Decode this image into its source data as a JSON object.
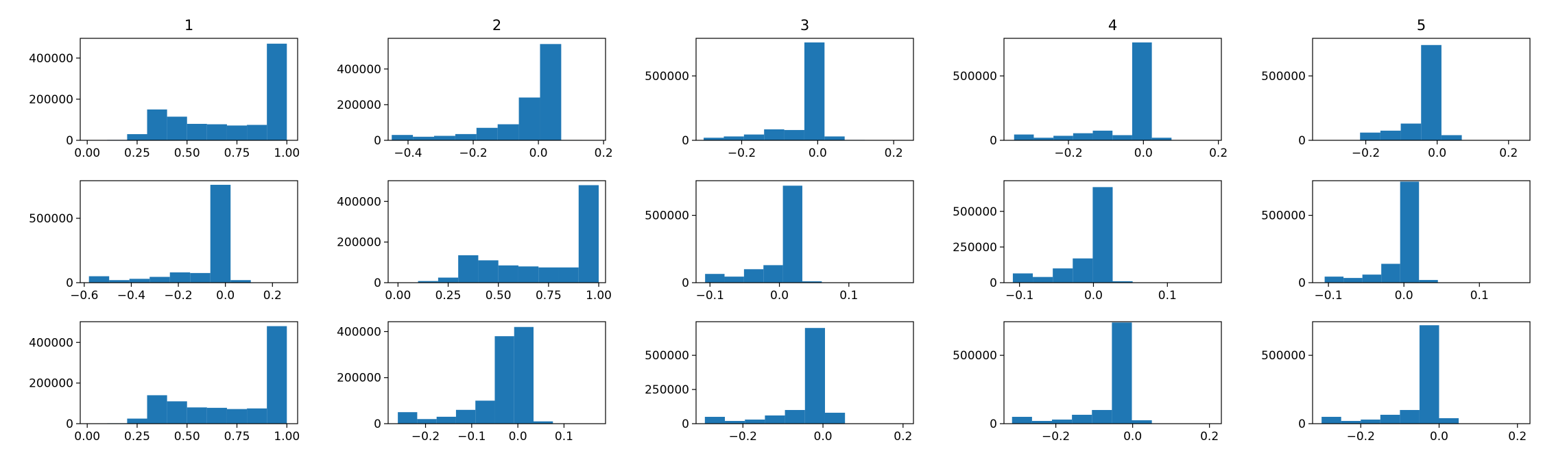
{
  "chart_data": [
    {
      "type": "histogram",
      "title": "1",
      "bins": [
        0,
        0.1,
        0.2,
        0.3,
        0.4,
        0.5,
        0.6,
        0.7,
        0.8,
        0.9,
        1.0
      ],
      "counts": [
        500,
        2000,
        30000,
        150000,
        115000,
        80000,
        78000,
        72000,
        75000,
        470000
      ],
      "color": "#1f77b4",
      "xlim": [
        -0.035,
        1.054
      ],
      "xticks": [
        {
          "value": 0,
          "label": "0.00"
        },
        {
          "value": 0.25,
          "label": "0.25"
        },
        {
          "value": 0.5,
          "label": "0.50"
        },
        {
          "value": 0.75,
          "label": "0.75"
        },
        {
          "value": 1,
          "label": "1.00"
        }
      ],
      "ylim": [
        0,
        496000
      ],
      "yticks": [
        0,
        200000,
        400000
      ]
    },
    {
      "type": "histogram",
      "title": "2",
      "bins": [
        -0.45,
        -0.385,
        -0.32,
        -0.255,
        -0.19,
        -0.125,
        -0.06,
        0.005,
        0.07,
        0.135,
        0.2
      ],
      "counts": [
        30000,
        20000,
        25000,
        35000,
        70000,
        90000,
        240000,
        540000,
        2000,
        500
      ],
      "color": "#1f77b4",
      "xlim": [
        -0.461,
        0.206
      ],
      "xticks": [
        {
          "value": -0.4,
          "label": "−0.4"
        },
        {
          "value": -0.2,
          "label": "−0.2"
        },
        {
          "value": 0,
          "label": "0.0"
        },
        0.2
      ],
      "ylim": [
        0,
        572000
      ],
      "yticks": [
        0,
        200000,
        400000
      ]
    },
    {
      "type": "histogram",
      "title": "3",
      "bins": [
        -0.3,
        -0.247,
        -0.194,
        -0.141,
        -0.088,
        -0.035,
        0.018,
        0.071,
        0.124,
        0.177,
        0.23
      ],
      "counts": [
        20000,
        30000,
        45000,
        85000,
        80000,
        760000,
        30000,
        3000,
        1000,
        500
      ],
      "color": "#1f77b4",
      "xlim": [
        -0.32,
        0.252
      ],
      "xticks": [
        {
          "value": -0.2,
          "label": "−0.2"
        },
        {
          "value": 0,
          "label": "0.0"
        },
        0.2
      ],
      "ylim": [
        0,
        792000
      ],
      "yticks": [
        0,
        500000
      ]
    },
    {
      "type": "histogram",
      "title": "4",
      "bins": [
        -0.345,
        -0.2925,
        -0.24,
        -0.1875,
        -0.135,
        -0.0825,
        -0.03,
        0.0225,
        0.075,
        0.1275,
        0.18
      ],
      "counts": [
        45000,
        20000,
        35000,
        55000,
        75000,
        40000,
        760000,
        20000,
        2000,
        500
      ],
      "color": "#1f77b4",
      "xlim": [
        -0.372,
        0.208
      ],
      "xticks": [
        {
          "value": -0.2,
          "label": "−0.2"
        },
        {
          "value": 0,
          "label": "0.0"
        },
        0.2
      ],
      "ylim": [
        0,
        792000
      ],
      "yticks": [
        0,
        500000
      ]
    },
    {
      "type": "histogram",
      "title": "5",
      "bins": [
        -0.33,
        -0.273,
        -0.216,
        -0.159,
        -0.102,
        -0.045,
        0.012,
        0.069,
        0.126,
        0.183,
        0.24
      ],
      "counts": [
        300,
        200,
        60000,
        75000,
        130000,
        740000,
        40000,
        2000,
        500,
        200
      ],
      "color": "#1f77b4",
      "xlim": [
        -0.349,
        0.26
      ],
      "xticks": [
        {
          "value": -0.2,
          "label": "−0.2"
        },
        {
          "value": 0,
          "label": "0.0"
        },
        0.2
      ],
      "ylim": [
        0,
        792000
      ],
      "yticks": [
        0,
        500000
      ]
    },
    {
      "type": "histogram",
      "bins": [
        -0.58,
        -0.494,
        -0.408,
        -0.322,
        -0.236,
        -0.15,
        -0.064,
        0.022,
        0.108,
        0.194,
        0.28
      ],
      "counts": [
        50000,
        20000,
        30000,
        45000,
        80000,
        75000,
        760000,
        20000,
        1000,
        500
      ],
      "color": "#1f77b4",
      "xlim": [
        -0.617,
        0.307
      ],
      "xticks": [
        {
          "value": -0.6,
          "label": "−0.6"
        },
        {
          "value": -0.4,
          "label": "−0.4"
        },
        {
          "value": -0.2,
          "label": "−0.2"
        },
        {
          "value": 0,
          "label": "0.0"
        },
        0.2
      ],
      "ylim": [
        0,
        792000
      ],
      "yticks": [
        0,
        500000
      ]
    },
    {
      "type": "histogram",
      "bins": [
        0,
        0.1,
        0.2,
        0.3,
        0.4,
        0.5,
        0.6,
        0.7,
        0.8,
        0.9,
        1.0
      ],
      "counts": [
        500,
        8000,
        25000,
        135000,
        110000,
        85000,
        80000,
        75000,
        75000,
        480000
      ],
      "color": "#1f77b4",
      "xlim": [
        -0.049,
        1.034
      ],
      "xticks": [
        {
          "value": 0,
          "label": "0.00"
        },
        {
          "value": 0.25,
          "label": "0.25"
        },
        {
          "value": 0.5,
          "label": "0.50"
        },
        {
          "value": 0.75,
          "label": "0.75"
        },
        {
          "value": 1,
          "label": "1.00"
        }
      ],
      "ylim": [
        0,
        502000
      ],
      "yticks": [
        0,
        200000,
        400000
      ]
    },
    {
      "type": "histogram",
      "bins": [
        -0.107,
        -0.079,
        -0.051,
        -0.023,
        0.005,
        0.033,
        0.061,
        0.089,
        0.117,
        0.145,
        0.173
      ],
      "counts": [
        65000,
        45000,
        100000,
        130000,
        720000,
        10000,
        2000,
        500,
        200,
        100
      ],
      "color": "#1f77b4",
      "xlim": [
        -0.12,
        0.193
      ],
      "xticks": [
        {
          "value": -0.1,
          "label": "−0.1"
        },
        {
          "value": 0,
          "label": "0.0"
        },
        0.1
      ],
      "ylim": [
        0,
        757000
      ],
      "yticks": [
        0,
        500000
      ]
    },
    {
      "type": "histogram",
      "bins": [
        -0.109,
        -0.082,
        -0.055,
        -0.028,
        -0.001,
        0.026,
        0.053,
        0.08,
        0.107,
        0.134,
        0.161
      ],
      "counts": [
        65000,
        40000,
        100000,
        170000,
        670000,
        10000,
        2000,
        500,
        200,
        100
      ],
      "color": "#1f77b4",
      "xlim": [
        -0.121,
        0.173
      ],
      "xticks": [
        {
          "value": -0.1,
          "label": "−0.1"
        },
        {
          "value": 0,
          "label": "0.0"
        },
        0.1
      ],
      "ylim": [
        0,
        715000
      ],
      "yticks": [
        0,
        250000,
        500000
      ]
    },
    {
      "type": "histogram",
      "bins": [
        -0.105,
        -0.08,
        -0.055,
        -0.03,
        -0.005,
        0.02,
        0.045,
        0.07,
        0.095,
        0.12,
        0.145
      ],
      "counts": [
        45000,
        35000,
        60000,
        140000,
        750000,
        20000,
        2000,
        500,
        200,
        100
      ],
      "color": "#1f77b4",
      "xlim": [
        -0.121,
        0.167
      ],
      "xticks": [
        {
          "value": -0.1,
          "label": "−0.1"
        },
        {
          "value": 0,
          "label": "0.0"
        },
        0.1
      ],
      "ylim": [
        0,
        757000
      ],
      "yticks": [
        0,
        500000
      ]
    },
    {
      "type": "histogram",
      "bins": [
        0,
        0.1,
        0.2,
        0.3,
        0.4,
        0.5,
        0.6,
        0.7,
        0.8,
        0.9,
        1.0
      ],
      "counts": [
        500,
        2000,
        25000,
        140000,
        110000,
        80000,
        78000,
        72000,
        75000,
        480000
      ],
      "color": "#1f77b4",
      "xlim": [
        -0.035,
        1.054
      ],
      "xticks": [
        {
          "value": 0,
          "label": "0.00"
        },
        {
          "value": 0.25,
          "label": "0.25"
        },
        {
          "value": 0.5,
          "label": "0.50"
        },
        {
          "value": 0.75,
          "label": "0.75"
        },
        {
          "value": 1,
          "label": "1.00"
        }
      ],
      "ylim": [
        0,
        502000
      ],
      "yticks": [
        0,
        200000,
        400000
      ]
    },
    {
      "type": "histogram",
      "bins": [
        -0.26,
        -0.218,
        -0.176,
        -0.134,
        -0.092,
        -0.05,
        -0.008,
        0.034,
        0.076,
        0.118,
        0.16
      ],
      "counts": [
        50000,
        20000,
        30000,
        60000,
        100000,
        380000,
        420000,
        10000,
        1000,
        200
      ],
      "color": "#1f77b4",
      "xlim": [
        -0.281,
        0.19
      ],
      "xticks": [
        {
          "value": -0.2,
          "label": "−0.2"
        },
        {
          "value": -0.1,
          "label": "−0.1"
        },
        {
          "value": 0,
          "label": "0.0"
        },
        0.1
      ],
      "ylim": [
        0,
        443000
      ],
      "yticks": [
        0,
        200000,
        400000
      ]
    },
    {
      "type": "histogram",
      "bins": [
        -0.295,
        -0.245,
        -0.195,
        -0.145,
        -0.095,
        -0.045,
        0.005,
        0.055,
        0.105,
        0.155,
        0.205
      ],
      "counts": [
        50000,
        20000,
        30000,
        60000,
        100000,
        700000,
        80000,
        2000,
        500,
        200
      ],
      "color": "#1f77b4",
      "xlim": [
        -0.317,
        0.226
      ],
      "xticks": [
        {
          "value": -0.2,
          "label": "−0.2"
        },
        {
          "value": 0,
          "label": "0.0"
        },
        0.2
      ],
      "ylim": [
        0,
        746000
      ],
      "yticks": [
        0,
        250000,
        500000
      ]
    },
    {
      "type": "histogram",
      "bins": [
        -0.314,
        -0.262,
        -0.21,
        -0.158,
        -0.106,
        -0.054,
        -0.002,
        0.05,
        0.102,
        0.154,
        0.206
      ],
      "counts": [
        50000,
        20000,
        30000,
        65000,
        100000,
        740000,
        25000,
        2000,
        500,
        200
      ],
      "color": "#1f77b4",
      "xlim": [
        -0.335,
        0.231
      ],
      "xticks": [
        {
          "value": -0.2,
          "label": "−0.2"
        },
        {
          "value": 0,
          "label": "0.0"
        },
        0.2
      ],
      "ylim": [
        0,
        746000
      ],
      "yticks": [
        0,
        500000
      ]
    },
    {
      "type": "histogram",
      "bins": [
        -0.3,
        -0.25,
        -0.2,
        -0.15,
        -0.1,
        -0.05,
        0,
        0.05,
        0.1,
        0.15,
        0.2
      ],
      "counts": [
        50000,
        20000,
        30000,
        65000,
        100000,
        720000,
        40000,
        2000,
        500,
        200
      ],
      "color": "#1f77b4",
      "xlim": [
        -0.323,
        0.232
      ],
      "xticks": [
        {
          "value": -0.2,
          "label": "−0.2"
        },
        {
          "value": 0,
          "label": "0.0"
        },
        0.2
      ],
      "ylim": [
        0,
        746000
      ],
      "yticks": [
        0,
        500000
      ]
    }
  ]
}
